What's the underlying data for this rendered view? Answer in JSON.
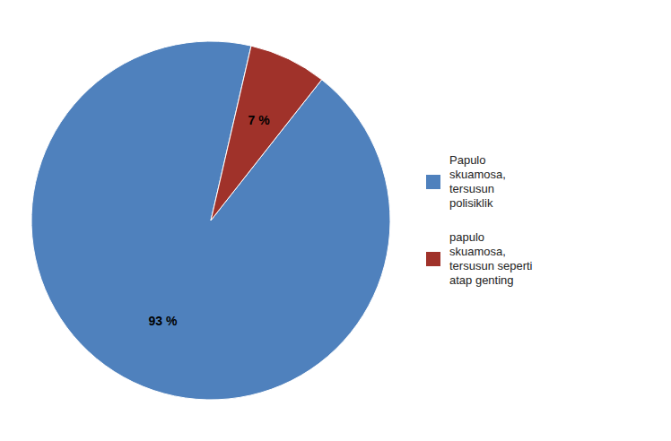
{
  "chart_data": {
    "type": "pie",
    "categories": [
      "Papulo\nskuamosa,\ntersusun\npolisiklik",
      "papulo\nskuamosa,\ntersusun seperti\natap genting"
    ],
    "values": [
      93,
      7
    ],
    "value_labels": [
      "93 %",
      "7 %"
    ],
    "colors": [
      "#4F81BD",
      "#A0322A"
    ],
    "data_labels": true,
    "legend": "right"
  }
}
